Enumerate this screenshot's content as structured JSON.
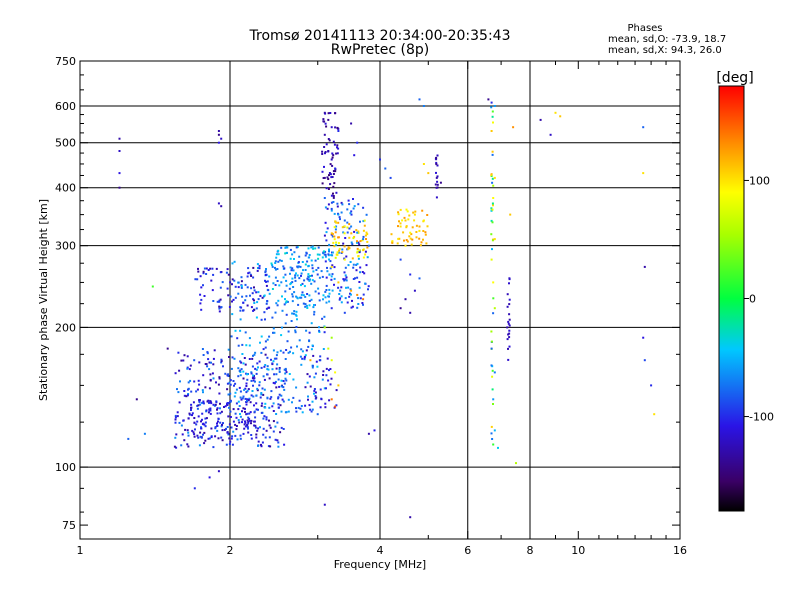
{
  "chart_data": {
    "type": "scatter",
    "title": "Tromsø 20141113 20:34:00-20:35:43",
    "subtitle": "RwPretec (8p)",
    "xlabel": "Frequency [MHz]",
    "ylabel": "Stationary phase Virtual Height [km]",
    "x_scale": "log",
    "y_scale": "log",
    "xlim": [
      1,
      16
    ],
    "ylim": [
      70,
      750
    ],
    "x_ticks": [
      {
        "value": 1,
        "label": "1"
      },
      {
        "value": 2,
        "label": "2"
      },
      {
        "value": 4,
        "label": "4"
      },
      {
        "value": 6,
        "label": "6"
      },
      {
        "value": 8,
        "label": "8"
      },
      {
        "value": 10,
        "label": "10"
      },
      {
        "value": 16,
        "label": "16"
      }
    ],
    "y_ticks": [
      {
        "value": 75,
        "label": "75"
      },
      {
        "value": 100,
        "label": "100"
      },
      {
        "value": 200,
        "label": "200"
      },
      {
        "value": 300,
        "label": "300"
      },
      {
        "value": 400,
        "label": "400"
      },
      {
        "value": 500,
        "label": "500"
      },
      {
        "value": 600,
        "label": "600"
      },
      {
        "value": 750,
        "label": "750"
      }
    ],
    "x_grid": [
      2,
      4,
      6,
      8
    ],
    "y_grid": [
      100,
      200,
      300,
      400,
      500,
      600
    ],
    "grid": true,
    "stats": {
      "heading": "Phases",
      "line1": "mean, sd,O: -73.9, 18.7",
      "line2": "mean, sd,X:  94.3, 26.0"
    },
    "colorbar": {
      "label": "[deg]",
      "range": [
        -180,
        180
      ],
      "ticks": [
        {
          "value": 100,
          "label": "100"
        },
        {
          "value": 0,
          "label": "0"
        },
        {
          "value": -100,
          "label": "-100"
        }
      ]
    },
    "points": [
      [
        1.2,
        510,
        -130
      ],
      [
        1.2,
        480,
        -120
      ],
      [
        1.2,
        430,
        -110
      ],
      [
        1.2,
        400,
        -140
      ],
      [
        1.9,
        530,
        -130
      ],
      [
        1.9,
        520,
        -140
      ],
      [
        1.92,
        510,
        -120
      ],
      [
        1.9,
        500,
        -110
      ],
      [
        1.9,
        370,
        -120
      ],
      [
        1.92,
        365,
        -130
      ],
      [
        3.1,
        580,
        -130
      ],
      [
        3.15,
        560,
        -140
      ],
      [
        3.2,
        540,
        -120
      ],
      [
        3.3,
        530,
        -100
      ],
      [
        3.1,
        520,
        -130
      ],
      [
        3.15,
        480,
        -130
      ],
      [
        3.2,
        460,
        -120
      ],
      [
        3.25,
        440,
        -100
      ],
      [
        3.1,
        420,
        -140
      ],
      [
        3.5,
        550,
        -130
      ],
      [
        3.6,
        500,
        -100
      ],
      [
        3.55,
        470,
        -110
      ],
      [
        3.1,
        380,
        -80
      ],
      [
        3.2,
        360,
        -90
      ],
      [
        3.3,
        350,
        -60
      ],
      [
        3.4,
        340,
        -80
      ],
      [
        3.5,
        330,
        -70
      ],
      [
        3.6,
        320,
        -60
      ],
      [
        3.7,
        310,
        -70
      ],
      [
        3.8,
        300,
        -80
      ],
      [
        3.6,
        290,
        80
      ],
      [
        3.4,
        280,
        90
      ],
      [
        3.2,
        270,
        100
      ],
      [
        3.0,
        260,
        -90
      ],
      [
        3.3,
        250,
        110
      ],
      [
        3.5,
        240,
        120
      ],
      [
        3.6,
        235,
        130
      ],
      [
        3.7,
        230,
        140
      ],
      [
        3.2,
        220,
        -100
      ],
      [
        3.4,
        215,
        -90
      ],
      [
        3.1,
        200,
        60
      ],
      [
        3.2,
        190,
        50
      ],
      [
        3.15,
        180,
        70
      ],
      [
        3.2,
        170,
        80
      ],
      [
        3.25,
        160,
        90
      ],
      [
        3.3,
        150,
        110
      ],
      [
        3.2,
        140,
        140
      ],
      [
        3.25,
        135,
        150
      ],
      [
        4.4,
        330,
        100
      ],
      [
        4.5,
        340,
        110
      ],
      [
        4.6,
        320,
        90
      ],
      [
        4.7,
        350,
        100
      ],
      [
        4.8,
        330,
        120
      ],
      [
        4.9,
        340,
        95
      ],
      [
        4.5,
        300,
        100
      ],
      [
        4.4,
        280,
        -90
      ],
      [
        4.6,
        260,
        -100
      ],
      [
        4.8,
        255,
        -80
      ],
      [
        4.7,
        240,
        -120
      ],
      [
        4.5,
        230,
        -130
      ],
      [
        4.4,
        220,
        -140
      ],
      [
        4.6,
        215,
        -130
      ],
      [
        4.9,
        450,
        100
      ],
      [
        5.0,
        430,
        110
      ],
      [
        5.2,
        420,
        -130
      ],
      [
        5.3,
        410,
        -140
      ],
      [
        4.1,
        440,
        -80
      ],
      [
        4.2,
        420,
        -90
      ],
      [
        4.0,
        460,
        -100
      ],
      [
        4.8,
        620,
        -80
      ],
      [
        4.9,
        600,
        -70
      ],
      [
        6.6,
        620,
        -140
      ],
      [
        6.7,
        610,
        -100
      ],
      [
        6.8,
        600,
        -60
      ],
      [
        6.7,
        530,
        110
      ],
      [
        6.8,
        420,
        100
      ],
      [
        6.75,
        380,
        90
      ],
      [
        6.8,
        310,
        100
      ],
      [
        6.7,
        280,
        80
      ],
      [
        6.75,
        250,
        90
      ],
      [
        6.8,
        220,
        60
      ],
      [
        6.7,
        180,
        -80
      ],
      [
        6.8,
        160,
        -70
      ],
      [
        6.75,
        140,
        -60
      ],
      [
        6.8,
        120,
        -50
      ],
      [
        6.9,
        110,
        -40
      ],
      [
        7.2,
        200,
        -130
      ],
      [
        7.3,
        350,
        110
      ],
      [
        7.4,
        540,
        130
      ],
      [
        8.4,
        560,
        -130
      ],
      [
        8.8,
        520,
        -120
      ],
      [
        9.0,
        580,
        100
      ],
      [
        9.2,
        570,
        110
      ],
      [
        13.5,
        540,
        -80
      ],
      [
        13.6,
        270,
        -130
      ],
      [
        13.5,
        190,
        -110
      ],
      [
        13.6,
        170,
        -90
      ],
      [
        14.2,
        130,
        100
      ],
      [
        14.0,
        150,
        -100
      ],
      [
        13.5,
        430,
        100
      ],
      [
        1.5,
        180,
        -140
      ],
      [
        1.3,
        140,
        -140
      ],
      [
        1.25,
        115,
        -80
      ],
      [
        1.35,
        118,
        -70
      ],
      [
        1.4,
        245,
        20
      ],
      [
        1.7,
        90,
        -100
      ],
      [
        1.82,
        95,
        -110
      ],
      [
        1.9,
        98,
        -120
      ],
      [
        3.1,
        83,
        -120
      ],
      [
        4.6,
        78,
        -130
      ],
      [
        7.5,
        102,
        60
      ],
      [
        3.9,
        120,
        -110
      ],
      [
        3.8,
        118,
        -130
      ],
      [
        3.0,
        130,
        -80
      ],
      [
        2.9,
        170,
        120
      ]
    ],
    "clusters": [
      {
        "x0": 1.55,
        "x1": 2.6,
        "y0": 110,
        "y1": 180,
        "n": 320,
        "c0": -140,
        "c1": -60
      },
      {
        "x0": 1.65,
        "x1": 2.3,
        "y0": 115,
        "y1": 140,
        "n": 120,
        "c0": -130,
        "c1": -90
      },
      {
        "x0": 2.0,
        "x1": 3.1,
        "y0": 130,
        "y1": 280,
        "n": 280,
        "c0": -100,
        "c1": -40
      },
      {
        "x0": 1.7,
        "x1": 2.4,
        "y0": 215,
        "y1": 270,
        "n": 90,
        "c0": -140,
        "c1": -80
      },
      {
        "x0": 2.4,
        "x1": 3.2,
        "y0": 220,
        "y1": 300,
        "n": 130,
        "c0": -90,
        "c1": -30
      },
      {
        "x0": 3.1,
        "x1": 3.8,
        "y0": 220,
        "y1": 380,
        "n": 140,
        "c0": -120,
        "c1": -50
      },
      {
        "x0": 3.2,
        "x1": 3.8,
        "y0": 280,
        "y1": 340,
        "n": 60,
        "c0": 70,
        "c1": 130
      },
      {
        "x0": 3.05,
        "x1": 3.3,
        "y0": 380,
        "y1": 580,
        "n": 60,
        "c0": -150,
        "c1": -110
      },
      {
        "x0": 4.2,
        "x1": 5.0,
        "y0": 300,
        "y1": 360,
        "n": 50,
        "c0": 90,
        "c1": 130
      },
      {
        "x0": 2.8,
        "x1": 3.3,
        "y0": 130,
        "y1": 180,
        "n": 40,
        "c0": -130,
        "c1": -90
      }
    ],
    "columns": [
      {
        "x": 6.72,
        "y0": 110,
        "y1": 600,
        "n": 40,
        "c0": -80,
        "c1": 120
      },
      {
        "x": 7.25,
        "y0": 170,
        "y1": 260,
        "n": 20,
        "c0": -130,
        "c1": -110
      },
      {
        "x": 5.2,
        "y0": 380,
        "y1": 470,
        "n": 15,
        "c0": -140,
        "c1": -110
      }
    ]
  }
}
